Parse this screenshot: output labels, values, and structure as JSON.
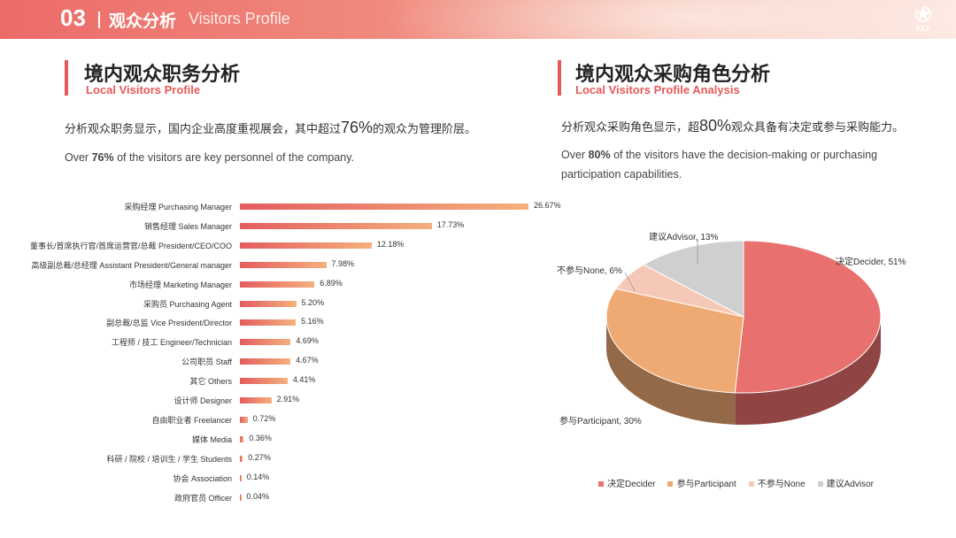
{
  "header": {
    "section_number": "03",
    "title_cn": "观众分析",
    "title_en": "Visitors Profile",
    "logo_text": "SILF"
  },
  "left": {
    "title_cn": "境内观众职务分析",
    "title_en": "Local Visitors Profile",
    "desc_cn_before": "分析观众职务显示，国内企业高度重视展会，其中超过",
    "desc_cn_highlight": "76%",
    "desc_cn_after": "的观众为管理阶层。",
    "desc_en_before": "Over ",
    "desc_en_bold": "76%",
    "desc_en_after": " of the visitors are key personnel of the company."
  },
  "right": {
    "title_cn": "境内观众采购角色分析",
    "title_en": "Local Visitors Profile Analysis",
    "desc_cn_before": "分析观众采购角色显示，超",
    "desc_cn_highlight": "80%",
    "desc_cn_after": "观众具备有决定或参与采购能力。",
    "desc_en_before": "Over ",
    "desc_en_bold": "80%",
    "desc_en_after": " of the visitors have the decision-making or purchasing participation capabilities."
  },
  "chart_data": [
    {
      "type": "bar",
      "orientation": "horizontal",
      "categories": [
        "采购经理 Purchasing Manager",
        "销售经理 Sales Manager",
        "董事长/首席执行官/首席运营官/总裁 President/CEO/COO",
        "高级副总裁/总经理 Assistant President/General manager",
        "市场经理 Marketing Manager",
        "采购员 Purchasing Agent",
        "副总裁/总监 Vice President/Director",
        "工程师 / 技工 Engineer/Technician",
        "公司职员 Staff",
        "其它 Others",
        "设计师 Designer",
        "自由职业者 Freelancer",
        "媒体 Media",
        "科研 / 院校 / 培训生 / 学生 Students",
        "协会 Association",
        "政府官员 Officer"
      ],
      "values": [
        26.67,
        17.73,
        12.18,
        7.98,
        6.89,
        5.2,
        5.16,
        4.69,
        4.67,
        4.41,
        2.91,
        0.72,
        0.36,
        0.27,
        0.14,
        0.04
      ],
      "value_labels": [
        "26.67%",
        "17.73%",
        "12.18%",
        "7.98%",
        "6.89%",
        "5.20%",
        "5.16%",
        "4.69%",
        "4.67%",
        "4.41%",
        "2.91%",
        "0.72%",
        "0.36%",
        "0.27%",
        "0.14%",
        "0.04%"
      ],
      "unit": "%",
      "colors": [
        "#e45c5f",
        "#f4b07c"
      ]
    },
    {
      "type": "pie",
      "style": "3d",
      "categories": [
        "决定Decider",
        "参与Participant",
        "不参与None",
        "建议Advisor"
      ],
      "values": [
        51,
        30,
        6,
        13
      ],
      "labels": [
        "决定Decider, 51%",
        "参与Participant, 30%",
        "不参与None, 6%",
        "建议Advisor, 13%"
      ],
      "colors": [
        "#e8706e",
        "#efaa74",
        "#f5c8b8",
        "#cfcfcf"
      ],
      "legend": "bottom"
    }
  ]
}
